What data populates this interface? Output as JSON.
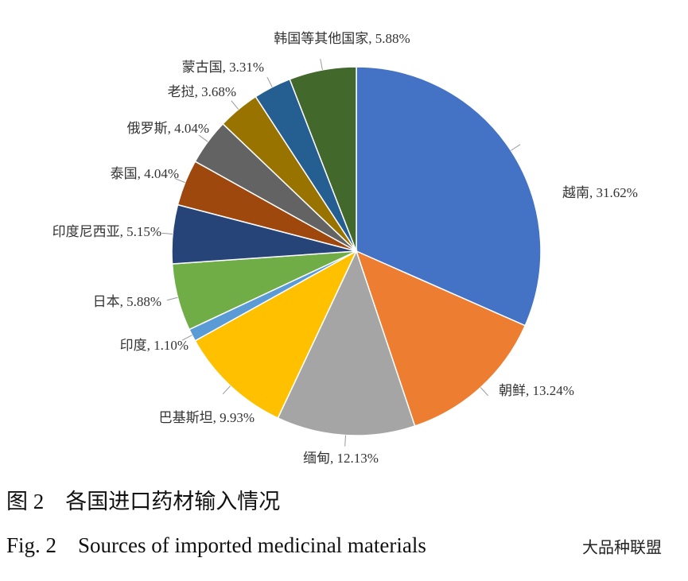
{
  "chart_data": {
    "type": "pie",
    "categories": [
      "越南",
      "朝鲜",
      "缅甸",
      "巴基斯坦",
      "印度",
      "日本",
      "印度尼西亚",
      "泰国",
      "俄罗斯",
      "老挝",
      "蒙古国",
      "韩国等其他国家"
    ],
    "values": [
      31.62,
      13.24,
      12.13,
      9.93,
      1.1,
      5.88,
      5.15,
      4.04,
      4.04,
      3.68,
      3.31,
      5.88
    ],
    "value_labels": [
      ", 31.62%",
      ", 13.24%",
      ", 12.13%",
      ", 9.93%",
      ", 1.10%",
      ", 5.88%",
      ", 5.15%",
      ", 4.04%",
      ", 4.04%",
      ", 3.68%",
      ", 3.31%",
      ", 5.88%"
    ],
    "colors": [
      "#4472c4",
      "#ed7d31",
      "#a5a5a5",
      "#ffc000",
      "#5b9bd5",
      "#70ad47",
      "#264478",
      "#9e480e",
      "#636363",
      "#997300",
      "#255e91",
      "#43682b"
    ]
  },
  "figure": {
    "caption_cn": "图 2　各国进口药材输入情况",
    "caption_en": "Fig. 2　Sources of imported medicinal materials",
    "watermark": "大品种联盟"
  }
}
